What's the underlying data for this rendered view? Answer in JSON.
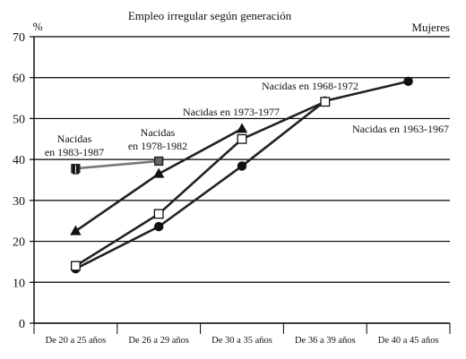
{
  "chart_data": {
    "type": "line",
    "title": "Empleo irregular según generación",
    "subtitle": "Mujeres",
    "ylabel": "%",
    "xlabel": "",
    "ylim": [
      0,
      70
    ],
    "yticks": [
      0,
      10,
      20,
      30,
      40,
      50,
      60,
      70
    ],
    "grid": true,
    "categories": [
      "De 20 a 25 años",
      "De 26 a 29 años",
      "De 30 a 35 años",
      "De 36 a 39 años",
      "De 40 a 45 años"
    ],
    "series": [
      {
        "name": "Nacidas en 1963-1967",
        "label_lines": [
          "Nacidas en 1963-1967"
        ],
        "marker": "circle",
        "values": [
          13.3,
          23.6,
          38.4,
          54.3,
          59.1
        ]
      },
      {
        "name": "Nacidas en 1968-1972",
        "label_lines": [
          "Nacidas en 1968-1972"
        ],
        "marker": "square-open",
        "values": [
          14.0,
          26.7,
          45.0,
          54.1,
          null
        ]
      },
      {
        "name": "Nacidas en 1973-1977",
        "label_lines": [
          "Nacidas en 1973-1977"
        ],
        "marker": "triangle",
        "values": [
          22.5,
          36.5,
          47.5,
          null,
          null
        ]
      },
      {
        "name": "Nacidas en 1978-1982",
        "label_lines": [
          "Nacidas",
          "en 1978-1982"
        ],
        "marker": "square-gray",
        "values": [
          37.8,
          39.6,
          null,
          null,
          null
        ]
      },
      {
        "name": "Nacidas en 1983-1987",
        "label_lines": [
          "Nacidas",
          "en 1983-1987"
        ],
        "marker": "bar",
        "values": [
          37.6,
          null,
          null,
          null,
          null
        ]
      }
    ],
    "colors": {
      "line": "#222222",
      "line_gray": "#777777",
      "marker_gray": "#666666",
      "grid": "#000000"
    }
  }
}
